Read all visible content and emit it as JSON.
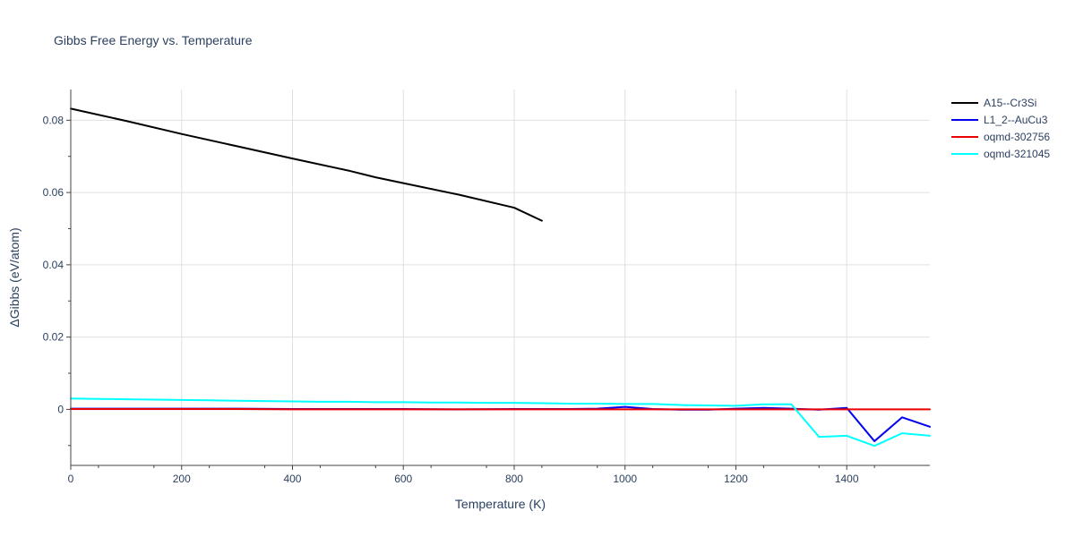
{
  "chart_data": {
    "type": "line",
    "title": "Gibbs Free Energy vs. Temperature",
    "xlabel": "Temperature (K)",
    "ylabel": "ΔGibbs (eV/atom)",
    "xlim": [
      0,
      1550
    ],
    "ylim": [
      -0.0155,
      0.0885
    ],
    "xticks": [
      0,
      200,
      400,
      600,
      800,
      1000,
      1200,
      1400
    ],
    "xtick_labels": [
      "0",
      "200",
      "400",
      "600",
      "800",
      "1000",
      "1200",
      "1400"
    ],
    "yticks": [
      0,
      0.02,
      0.04,
      0.06,
      0.08
    ],
    "ytick_labels": [
      "0",
      "0.02",
      "0.04",
      "0.06",
      "0.08"
    ],
    "grid": true,
    "legend_position": "top-right",
    "series": [
      {
        "name": "A15--Cr3Si",
        "color": "#000000",
        "x": [
          0,
          100,
          200,
          300,
          400,
          500,
          550,
          600,
          700,
          800,
          850
        ],
        "y": [
          0.0832,
          0.0798,
          0.0762,
          0.0728,
          0.0694,
          0.0661,
          0.0642,
          0.0626,
          0.0594,
          0.0558,
          0.0522
        ]
      },
      {
        "name": "L1_2--AuCu3",
        "color": "#0000ee",
        "x": [
          0,
          100,
          200,
          300,
          400,
          500,
          600,
          700,
          800,
          900,
          950,
          1000,
          1050,
          1100,
          1150,
          1200,
          1250,
          1300,
          1350,
          1400,
          1450,
          1500,
          1550
        ],
        "y": [
          0.0002,
          0.0002,
          0.0002,
          0.0002,
          0.0001,
          0.0001,
          0.0001,
          0.0,
          0.0001,
          0.0001,
          0.0002,
          0.0007,
          0.0001,
          -0.0001,
          -0.0001,
          0.0002,
          0.0004,
          0.0002,
          -0.0001,
          0.0004,
          -0.0088,
          -0.0022,
          -0.0048
        ]
      },
      {
        "name": "oqmd-302756",
        "color": "#ee0000",
        "x": [
          0,
          100,
          200,
          300,
          400,
          500,
          600,
          700,
          800,
          900,
          1000,
          1100,
          1200,
          1300,
          1400,
          1500,
          1550
        ],
        "y": [
          0.0001,
          0.0001,
          0.0001,
          0.0001,
          0.0,
          0.0,
          0.0,
          0.0,
          0.0,
          0.0,
          0.0,
          0.0,
          0.0,
          0.0,
          0.0,
          0.0,
          0.0
        ]
      },
      {
        "name": "oqmd-321045",
        "color": "#00ffff",
        "x": [
          0,
          50,
          100,
          150,
          200,
          250,
          300,
          350,
          400,
          450,
          500,
          550,
          600,
          650,
          700,
          750,
          800,
          850,
          900,
          950,
          1000,
          1050,
          1100,
          1150,
          1200,
          1250,
          1300,
          1350,
          1400,
          1450,
          1500,
          1550
        ],
        "y": [
          0.003,
          0.0029,
          0.0028,
          0.0027,
          0.0026,
          0.0025,
          0.0024,
          0.0023,
          0.0022,
          0.0021,
          0.0021,
          0.002,
          0.002,
          0.0019,
          0.0019,
          0.0018,
          0.0018,
          0.0017,
          0.0016,
          0.0016,
          0.0015,
          0.0015,
          0.0012,
          0.0011,
          0.001,
          0.0014,
          0.0014,
          -0.0076,
          -0.0073,
          -0.0101,
          -0.0066,
          -0.0073
        ]
      }
    ]
  }
}
